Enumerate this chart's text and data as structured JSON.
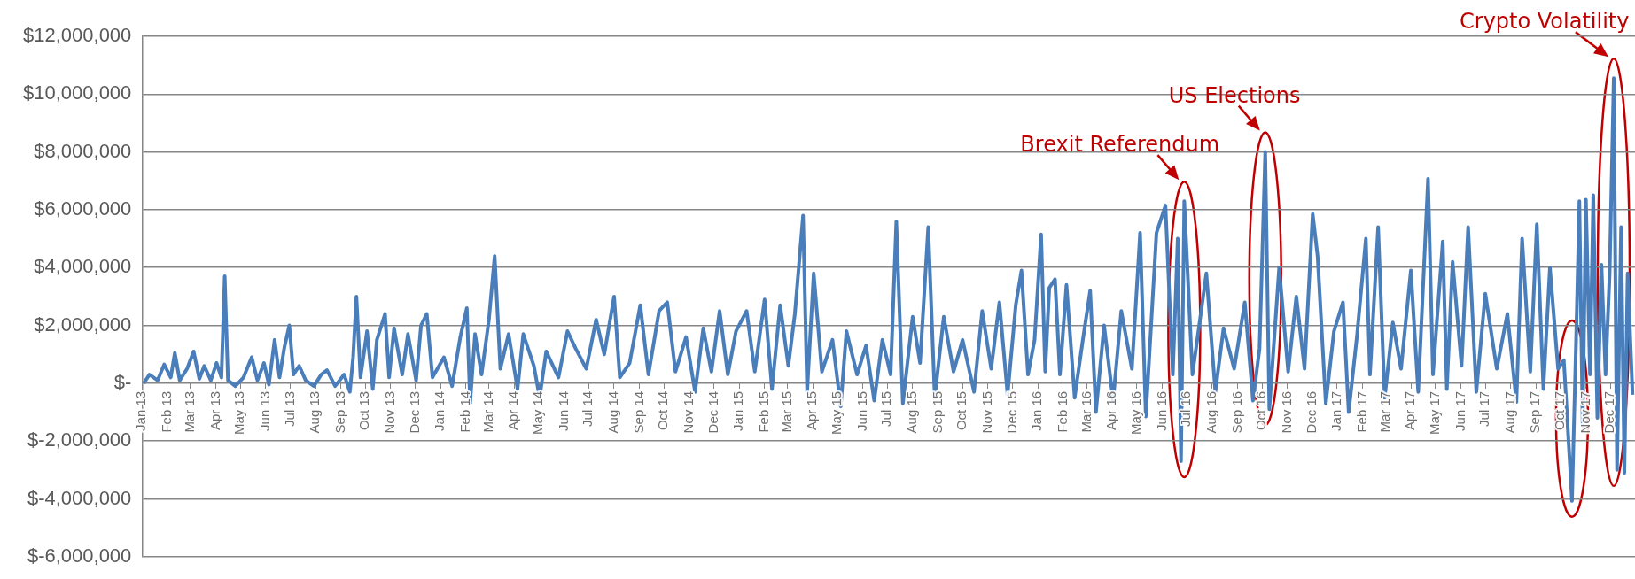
{
  "chart_data": {
    "type": "line",
    "color": "#4a7ebb",
    "marker": "none",
    "grid": "y",
    "xlim": [
      "2013-01-01",
      "2017-12-31"
    ],
    "ylim": [
      -6000000,
      12000000
    ],
    "yticks": [
      {
        "value": -6000000,
        "label": "$-6,000,000"
      },
      {
        "value": -4000000,
        "label": "$-4,000,000"
      },
      {
        "value": -2000000,
        "label": "$-2,000,000"
      },
      {
        "value": 0,
        "label": "$-"
      },
      {
        "value": 2000000,
        "label": "$2,000,000"
      },
      {
        "value": 4000000,
        "label": "$4,000,000"
      },
      {
        "value": 6000000,
        "label": "$6,000,000"
      },
      {
        "value": 8000000,
        "label": "$8,000,000"
      },
      {
        "value": 10000000,
        "label": "$10,000,000"
      },
      {
        "value": 12000000,
        "label": "$12,000,000"
      }
    ],
    "xticks": [
      {
        "value": "2013-01",
        "label": "Jan 13"
      },
      {
        "value": "2013-02",
        "label": "Feb 13"
      },
      {
        "value": "2013-03",
        "label": "Mar 13"
      },
      {
        "value": "2013-04",
        "label": "Apr 13"
      },
      {
        "value": "2013-05",
        "label": "May 13"
      },
      {
        "value": "2013-06",
        "label": "Jun 13"
      },
      {
        "value": "2013-07",
        "label": "Jul 13"
      },
      {
        "value": "2013-08",
        "label": "Aug 13"
      },
      {
        "value": "2013-09",
        "label": "Sep 13"
      },
      {
        "value": "2013-10",
        "label": "Oct 13"
      },
      {
        "value": "2013-11",
        "label": "Nov 13"
      },
      {
        "value": "2013-12",
        "label": "Dec 13"
      },
      {
        "value": "2014-01",
        "label": "Jan 14"
      },
      {
        "value": "2014-02",
        "label": "Feb 14"
      },
      {
        "value": "2014-03",
        "label": "Mar 14"
      },
      {
        "value": "2014-04",
        "label": "Apr 14"
      },
      {
        "value": "2014-05",
        "label": "May 14"
      },
      {
        "value": "2014-06",
        "label": "Jun 14"
      },
      {
        "value": "2014-07",
        "label": "Jul 14"
      },
      {
        "value": "2014-08",
        "label": "Aug 14"
      },
      {
        "value": "2014-09",
        "label": "Sep 14"
      },
      {
        "value": "2014-10",
        "label": "Oct 14"
      },
      {
        "value": "2014-11",
        "label": "Nov 14"
      },
      {
        "value": "2014-12",
        "label": "Dec 14"
      },
      {
        "value": "2015-01",
        "label": "Jan 15"
      },
      {
        "value": "2015-02",
        "label": "Feb 15"
      },
      {
        "value": "2015-03",
        "label": "Mar 15"
      },
      {
        "value": "2015-04",
        "label": "Apr 15"
      },
      {
        "value": "2015-05",
        "label": "May 15"
      },
      {
        "value": "2015-06",
        "label": "Jun 15"
      },
      {
        "value": "2015-07",
        "label": "Jul 15"
      },
      {
        "value": "2015-08",
        "label": "Aug 15"
      },
      {
        "value": "2015-09",
        "label": "Sep 15"
      },
      {
        "value": "2015-10",
        "label": "Oct 15"
      },
      {
        "value": "2015-11",
        "label": "Nov 15"
      },
      {
        "value": "2015-12",
        "label": "Dec 15"
      },
      {
        "value": "2016-01",
        "label": "Jan 16"
      },
      {
        "value": "2016-02",
        "label": "Feb 16"
      },
      {
        "value": "2016-03",
        "label": "Mar 16"
      },
      {
        "value": "2016-04",
        "label": "Apr 16"
      },
      {
        "value": "2016-05",
        "label": "May 16"
      },
      {
        "value": "2016-06",
        "label": "Jun 16"
      },
      {
        "value": "2016-07",
        "label": "Jul 16"
      },
      {
        "value": "2016-08",
        "label": "Aug 16"
      },
      {
        "value": "2016-09",
        "label": "Sep 16"
      },
      {
        "value": "2016-10",
        "label": "Oct 16"
      },
      {
        "value": "2016-11",
        "label": "Nov 16"
      },
      {
        "value": "2016-12",
        "label": "Dec 16"
      },
      {
        "value": "2017-01",
        "label": "Jan 17"
      },
      {
        "value": "2017-02",
        "label": "Feb 17"
      },
      {
        "value": "2017-03",
        "label": "Mar 17"
      },
      {
        "value": "2017-04",
        "label": "Apr 17"
      },
      {
        "value": "2017-05",
        "label": "May 17"
      },
      {
        "value": "2017-06",
        "label": "Jun 17"
      },
      {
        "value": "2017-07",
        "label": "Jul 17"
      },
      {
        "value": "2017-08",
        "label": "Aug 17"
      },
      {
        "value": "2017-09",
        "label": "Sep 17"
      },
      {
        "value": "2017-10",
        "label": "Oct 17"
      },
      {
        "value": "2017-11",
        "label": "Nov 17"
      },
      {
        "value": "2017-12",
        "label": "Dec 17"
      }
    ],
    "annotations": [
      {
        "text": "Brexit Referendum",
        "x": "2016-06-28",
        "y": 6300000
      },
      {
        "text": "US Elections",
        "x": "2016-10-05",
        "y": 8000000
      },
      {
        "text": "Crypto Volatility",
        "x": "2017-12-05",
        "y": 10550000
      }
    ],
    "x": [
      "2013-01-03",
      "2013-01-10",
      "2013-01-20",
      "2013-01-28",
      "2013-02-05",
      "2013-02-10",
      "2013-02-16",
      "2013-02-25",
      "2013-03-05",
      "2013-03-12",
      "2013-03-18",
      "2013-03-26",
      "2013-04-02",
      "2013-04-08",
      "2013-04-12",
      "2013-04-16",
      "2013-04-25",
      "2013-05-05",
      "2013-05-15",
      "2013-05-22",
      "2013-05-30",
      "2013-06-05",
      "2013-06-12",
      "2013-06-18",
      "2013-06-24",
      "2013-06-30",
      "2013-07-05",
      "2013-07-12",
      "2013-07-20",
      "2013-07-30",
      "2013-08-08",
      "2013-08-15",
      "2013-08-25",
      "2013-09-05",
      "2013-09-12",
      "2013-09-16",
      "2013-09-20",
      "2013-09-25",
      "2013-10-03",
      "2013-10-10",
      "2013-10-15",
      "2013-10-25",
      "2013-10-30",
      "2013-11-05",
      "2013-11-15",
      "2013-11-22",
      "2013-12-02",
      "2013-12-08",
      "2013-12-15",
      "2013-12-22",
      "2014-01-05",
      "2014-01-15",
      "2014-01-25",
      "2014-02-02",
      "2014-02-06",
      "2014-02-12",
      "2014-02-20",
      "2014-03-01",
      "2014-03-08",
      "2014-03-15",
      "2014-03-25",
      "2014-04-05",
      "2014-04-12",
      "2014-04-25",
      "2014-05-02",
      "2014-05-10",
      "2014-05-25",
      "2014-06-05",
      "2014-06-15",
      "2014-06-28",
      "2014-07-10",
      "2014-07-20",
      "2014-08-01",
      "2014-08-08",
      "2014-08-20",
      "2014-09-02",
      "2014-09-12",
      "2014-09-25",
      "2014-10-05",
      "2014-10-15",
      "2014-10-28",
      "2014-11-08",
      "2014-11-18",
      "2014-11-28",
      "2014-12-08",
      "2014-12-18",
      "2014-12-28",
      "2015-01-10",
      "2015-01-20",
      "2015-02-01",
      "2015-02-10",
      "2015-02-20",
      "2015-03-02",
      "2015-03-10",
      "2015-03-20",
      "2015-03-25",
      "2015-04-02",
      "2015-04-12",
      "2015-04-25",
      "2015-05-05",
      "2015-05-12",
      "2015-05-25",
      "2015-06-05",
      "2015-06-15",
      "2015-06-25",
      "2015-07-05",
      "2015-07-12",
      "2015-07-20",
      "2015-08-01",
      "2015-08-10",
      "2015-08-20",
      "2015-08-28",
      "2015-09-08",
      "2015-09-20",
      "2015-10-01",
      "2015-10-15",
      "2015-10-25",
      "2015-11-05",
      "2015-11-15",
      "2015-11-25",
      "2015-12-05",
      "2015-12-12",
      "2015-12-20",
      "2015-12-28",
      "2016-01-05",
      "2016-01-10",
      "2016-01-15",
      "2016-01-22",
      "2016-01-28",
      "2016-02-05",
      "2016-02-15",
      "2016-02-25",
      "2016-03-05",
      "2016-03-12",
      "2016-03-22",
      "2016-04-02",
      "2016-04-12",
      "2016-04-25",
      "2016-05-05",
      "2016-05-12",
      "2016-05-25",
      "2016-06-05",
      "2016-06-14",
      "2016-06-20",
      "2016-06-24",
      "2016-06-28",
      "2016-07-08",
      "2016-07-25",
      "2016-08-05",
      "2016-08-15",
      "2016-08-28",
      "2016-09-10",
      "2016-09-20",
      "2016-09-28",
      "2016-10-05",
      "2016-10-10",
      "2016-10-22",
      "2016-11-02",
      "2016-11-12",
      "2016-11-22",
      "2016-12-02",
      "2016-12-08",
      "2016-12-18",
      "2016-12-28",
      "2017-01-08",
      "2017-01-15",
      "2017-01-25",
      "2017-02-05",
      "2017-02-10",
      "2017-02-20",
      "2017-02-28",
      "2017-03-10",
      "2017-03-20",
      "2017-04-01",
      "2017-04-10",
      "2017-04-22",
      "2017-04-28",
      "2017-05-10",
      "2017-05-15",
      "2017-05-22",
      "2017-06-02",
      "2017-06-10",
      "2017-06-20",
      "2017-07-01",
      "2017-07-15",
      "2017-07-28",
      "2017-08-08",
      "2017-08-15",
      "2017-08-25",
      "2017-09-02",
      "2017-09-10",
      "2017-09-18",
      "2017-09-28",
      "2017-10-05",
      "2017-10-15",
      "2017-10-20",
      "2017-10-24",
      "2017-10-28",
      "2017-11-01",
      "2017-11-06",
      "2017-11-10",
      "2017-11-15",
      "2017-11-20",
      "2017-11-25",
      "2017-11-30",
      "2017-12-05",
      "2017-12-09",
      "2017-12-14",
      "2017-12-18",
      "2017-12-22",
      "2017-12-28"
    ],
    "values": [
      0,
      300000,
      100000,
      650000,
      200000,
      1050000,
      100000,
      500000,
      1100000,
      150000,
      600000,
      100000,
      700000,
      200000,
      3700000,
      100000,
      -100000,
      200000,
      900000,
      100000,
      700000,
      -50000,
      1500000,
      200000,
      1250000,
      2000000,
      300000,
      600000,
      100000,
      -100000,
      300000,
      450000,
      -100000,
      300000,
      -300000,
      900000,
      3000000,
      200000,
      1800000,
      -200000,
      1500000,
      2400000,
      200000,
      1900000,
      300000,
      1700000,
      100000,
      2000000,
      2400000,
      200000,
      900000,
      -100000,
      1600000,
      2600000,
      -700000,
      1700000,
      300000,
      2200000,
      4400000,
      500000,
      1700000,
      -200000,
      1700000,
      600000,
      -500000,
      1100000,
      200000,
      1800000,
      1200000,
      500000,
      2200000,
      1000000,
      3000000,
      200000,
      700000,
      2700000,
      300000,
      2500000,
      2800000,
      400000,
      1600000,
      -300000,
      1900000,
      400000,
      2500000,
      300000,
      1800000,
      2500000,
      400000,
      2900000,
      -200000,
      2700000,
      600000,
      2400000,
      5800000,
      -300000,
      3800000,
      400000,
      1500000,
      -800000,
      1800000,
      300000,
      1300000,
      -600000,
      1500000,
      300000,
      5600000,
      -700000,
      2300000,
      700000,
      5400000,
      -500000,
      2300000,
      400000,
      1500000,
      -300000,
      2500000,
      500000,
      2800000,
      -400000,
      2700000,
      3900000,
      300000,
      1500000,
      5150000,
      400000,
      3300000,
      3600000,
      300000,
      3400000,
      -500000,
      1500000,
      3200000,
      -1000000,
      2000000,
      -600000,
      2500000,
      500000,
      5200000,
      -1150000,
      5200000,
      6150000,
      300000,
      5000000,
      -2700000,
      6300000,
      300000,
      3800000,
      -300000,
      1900000,
      500000,
      2800000,
      -600000,
      1200000,
      8000000,
      -900000,
      4000000,
      400000,
      3000000,
      500000,
      5850000,
      4400000,
      -700000,
      1800000,
      2800000,
      -1000000,
      1600000,
      5000000,
      300000,
      5400000,
      -500000,
      2100000,
      500000,
      3900000,
      -300000,
      7070000,
      300000,
      4900000,
      -200000,
      4200000,
      600000,
      5400000,
      -300000,
      3100000,
      500000,
      2400000,
      -650000,
      5000000,
      400000,
      5500000,
      -200000,
      4000000,
      500000,
      800000,
      -4070000,
      1500000,
      6300000,
      -1500000,
      6350000,
      300000,
      6500000,
      -1200000,
      4100000,
      300000,
      3800000,
      10550000,
      -3000000,
      5400000,
      -3100000,
      3800000,
      -400000
    ]
  }
}
